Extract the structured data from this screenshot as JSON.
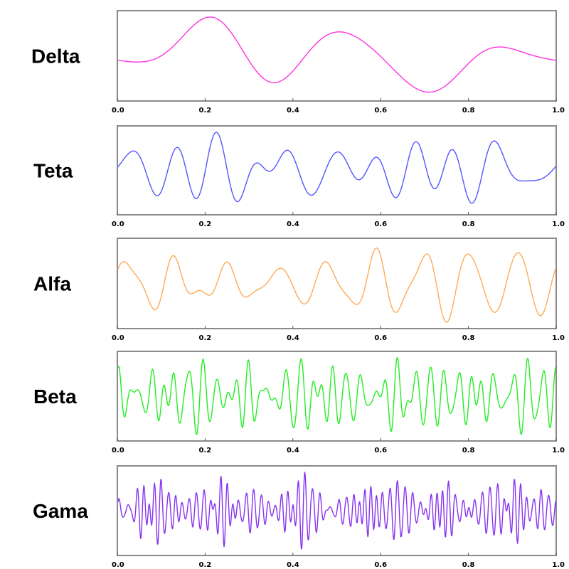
{
  "chart_data": [
    {
      "type": "line",
      "label": "Delta",
      "color": "#ff33dd",
      "xlim": [
        0.0,
        1.0
      ],
      "xticks": [
        "0.0",
        "0.2",
        "0.4",
        "0.6",
        "0.8",
        "1.0"
      ],
      "ylim": [
        -1.0,
        1.0
      ],
      "grid": false,
      "series": [
        {
          "components": [
            [
              1,
              0.3,
              0.2
            ],
            [
              2,
              0.15,
              1.0
            ],
            [
              3,
              0.55,
              4.1
            ],
            [
              4,
              0.12,
              2.0
            ],
            [
              5,
              0.1,
              0.5
            ]
          ]
        }
      ]
    },
    {
      "type": "line",
      "label": "Teta",
      "color": "#5555ff",
      "xlim": [
        0.0,
        1.0
      ],
      "xticks": [
        "0.0",
        "0.2",
        "0.4",
        "0.6",
        "0.8",
        "1.0"
      ],
      "ylim": [
        -1.0,
        1.0
      ],
      "grid": false,
      "series": [
        {
          "components": [
            [
              6,
              0.25,
              0.3
            ],
            [
              8,
              0.18,
              1.7
            ],
            [
              11,
              0.4,
              5.0
            ],
            [
              13,
              0.15,
              2.2
            ],
            [
              9,
              0.12,
              0.9
            ]
          ]
        }
      ]
    },
    {
      "type": "line",
      "label": "Alfa",
      "color": "#ffaa55",
      "xlim": [
        0.0,
        1.0
      ],
      "xticks": [
        "0.0",
        "0.2",
        "0.4",
        "0.6",
        "0.8",
        "1.0"
      ],
      "ylim": [
        -1.0,
        1.0
      ],
      "grid": false,
      "series": [
        {
          "components": [
            [
              9,
              0.75,
              0.0
            ],
            [
              10,
              0.3,
              1.3
            ],
            [
              15,
              0.2,
              2.6
            ],
            [
              17,
              0.12,
              0.8
            ]
          ]
        }
      ]
    },
    {
      "type": "line",
      "label": "Beta",
      "color": "#22ee22",
      "xlim": [
        0.0,
        1.0
      ],
      "xticks": [
        "0.0",
        "0.2",
        "0.4",
        "0.6",
        "0.8",
        "1.0"
      ],
      "ylim": [
        -1.0,
        1.0
      ],
      "grid": false,
      "series": [
        {
          "components": [
            [
              27,
              0.38,
              0.2
            ],
            [
              31,
              0.32,
              1.1
            ],
            [
              36,
              0.28,
              2.4
            ],
            [
              41,
              0.22,
              0.6
            ],
            [
              23,
              0.18,
              3.3
            ],
            [
              47,
              0.15,
              1.9
            ]
          ]
        }
      ]
    },
    {
      "type": "line",
      "label": "Gama",
      "color": "#8833ee",
      "xlim": [
        0.0,
        1.0
      ],
      "xticks": [
        "0.0",
        "0.2",
        "0.4",
        "0.6",
        "0.8",
        "1.0"
      ],
      "ylim": [
        -1.0,
        1.0
      ],
      "grid": false,
      "series": [
        {
          "components": [
            [
              52,
              0.28,
              0.4
            ],
            [
              61,
              0.25,
              1.5
            ],
            [
              67,
              0.22,
              2.9
            ],
            [
              73,
              0.2,
              0.2
            ],
            [
              79,
              0.18,
              4.0
            ],
            [
              57,
              0.18,
              5.2
            ],
            [
              85,
              0.12,
              1.1
            ]
          ]
        }
      ]
    }
  ]
}
